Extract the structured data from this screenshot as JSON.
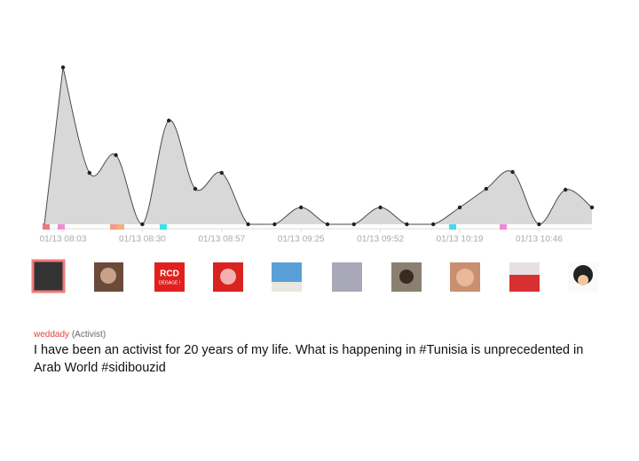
{
  "chart_data": {
    "type": "area",
    "color": "#d8d8d8",
    "line_color": "#4a4a4a",
    "categories": [
      "01/13 08:03",
      null,
      null,
      "01/13 08:30",
      null,
      null,
      "01/13 08:57",
      null,
      null,
      "01/13 09:25",
      null,
      null,
      "01/13 09:52",
      null,
      null,
      "01/13 10:19",
      null,
      null,
      "01/13 10:46",
      null,
      null
    ],
    "values": [
      177,
      58,
      78,
      0,
      117,
      40,
      58,
      0,
      0,
      19,
      0,
      0,
      19,
      0,
      0,
      19,
      40,
      59,
      0,
      39,
      19
    ]
  },
  "avatars": {
    "rcd_text": "RCD",
    "rcd_subtext": "DÉGAGE !"
  },
  "tweet": {
    "user": "weddady",
    "role": "(Activist)",
    "text": "I have been an activist for 20 years of my life. What is happening in #Tunisia is unprecedented in Arab World #sidibouzid"
  }
}
